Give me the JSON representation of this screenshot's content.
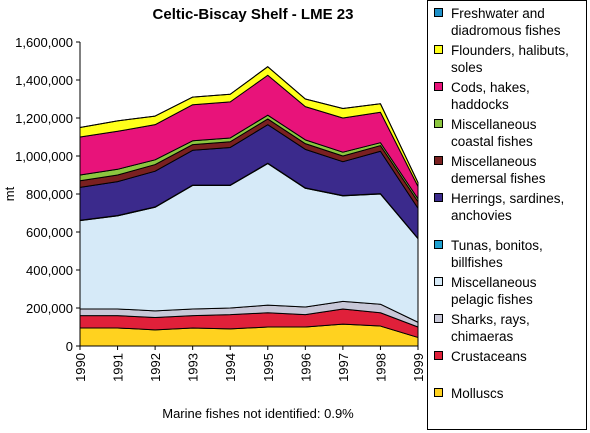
{
  "chart_data": {
    "type": "area",
    "stacked": true,
    "title": "Celtic-Biscay Shelf - LME 23",
    "xlabel": "",
    "ylabel": "mt",
    "x": [
      "1990",
      "1991",
      "1992",
      "1993",
      "1994",
      "1995",
      "1996",
      "1997",
      "1998",
      "1999"
    ],
    "ylim": [
      0,
      1600000
    ],
    "yticks": [
      "0",
      "200,000",
      "400,000",
      "600,000",
      "800,000",
      "1,000,000",
      "1,200,000",
      "1,400,000",
      "1,600,000"
    ],
    "ytick_values": [
      0,
      200000,
      400000,
      600000,
      800000,
      1000000,
      1200000,
      1400000,
      1600000
    ],
    "note": "Marine fishes not identified: 0.9%",
    "series": [
      {
        "name": "Molluscs",
        "color": "#FFD21F",
        "values": [
          95000,
          95000,
          85000,
          95000,
          90000,
          100000,
          100000,
          115000,
          105000,
          45000
        ]
      },
      {
        "name": "Crustaceans",
        "color": "#E0203A",
        "values": [
          65000,
          65000,
          65000,
          65000,
          75000,
          75000,
          65000,
          80000,
          70000,
          55000
        ]
      },
      {
        "name": "Sharks, rays,\nchimaeras",
        "color": "#C8C8D8",
        "values": [
          35000,
          35000,
          35000,
          35000,
          35000,
          40000,
          40000,
          40000,
          45000,
          25000
        ]
      },
      {
        "name": "Miscellaneous\npelagic fishes",
        "color": "#D6EAF8",
        "values": [
          465000,
          490000,
          545000,
          650000,
          645000,
          745000,
          625000,
          555000,
          580000,
          440000
        ]
      },
      {
        "name": "Tunas, bonitos,\nbillfishes",
        "color": "#1EA0D0",
        "values": [
          2000,
          2000,
          2000,
          2000,
          2000,
          2000,
          2000,
          2000,
          2000,
          2000
        ]
      },
      {
        "name": "Herrings, sardines,\nanchovies",
        "color": "#3B2A8C",
        "values": [
          173000,
          178000,
          188000,
          183000,
          198000,
          203000,
          203000,
          178000,
          223000,
          158000
        ]
      },
      {
        "name": "Miscellaneous\ndemersal fishes",
        "color": "#7A2020",
        "values": [
          35000,
          35000,
          35000,
          30000,
          30000,
          30000,
          30000,
          30000,
          30000,
          35000
        ]
      },
      {
        "name": "Miscellaneous\ncoastal fishes",
        "color": "#8CC63F",
        "values": [
          30000,
          30000,
          25000,
          20000,
          20000,
          20000,
          20000,
          20000,
          15000,
          15000
        ]
      },
      {
        "name": "Cods, hakes,\nhaddocks",
        "color": "#E8137A",
        "values": [
          200000,
          200000,
          185000,
          190000,
          190000,
          210000,
          175000,
          180000,
          160000,
          65000
        ]
      },
      {
        "name": "Flounders, halibuts,\nsoles",
        "color": "#FFFF1A",
        "values": [
          50000,
          55000,
          45000,
          40000,
          40000,
          45000,
          40000,
          50000,
          45000,
          20000
        ]
      },
      {
        "name": "Freshwater and\ndiadromous fishes",
        "color": "#1E90C8",
        "values": [
          0,
          0,
          0,
          0,
          0,
          0,
          0,
          0,
          0,
          0
        ]
      }
    ],
    "legend": {
      "placement": "right",
      "order": [
        "Freshwater and\ndiadromous fishes",
        "Flounders, halibuts,\nsoles",
        "Cods, hakes,\nhaddocks",
        "Miscellaneous\ncoastal fishes",
        "Miscellaneous\ndemersal fishes",
        "Herrings, sardines,\nanchovies",
        "Tunas, bonitos,\nbillfishes",
        "Miscellaneous\npelagic fishes",
        "Sharks, rays,\nchimaeras",
        "Crustaceans",
        "Molluscs"
      ]
    },
    "grid": false
  }
}
